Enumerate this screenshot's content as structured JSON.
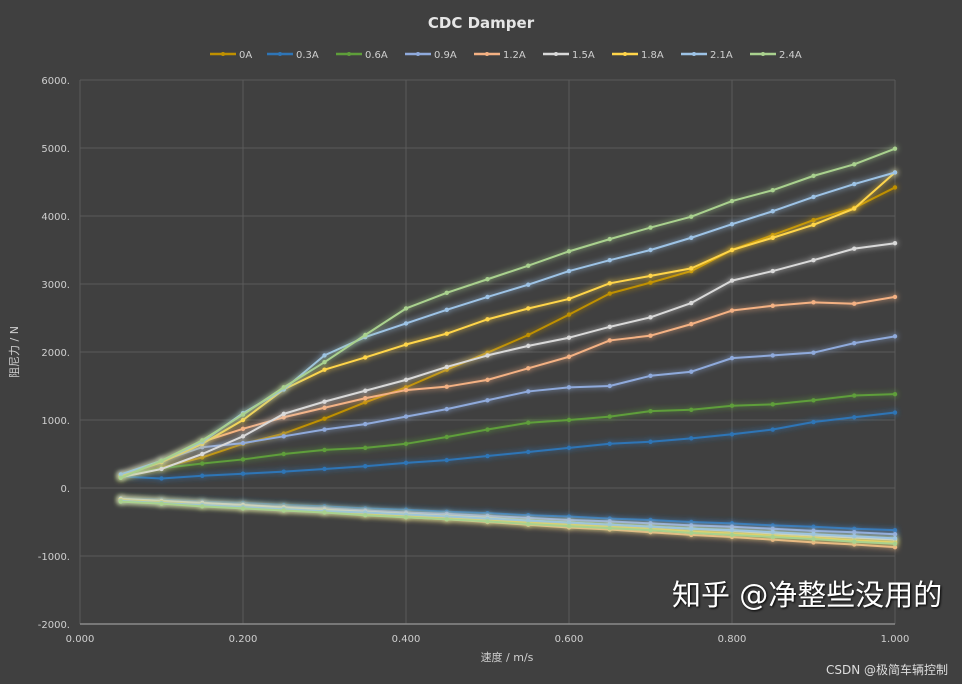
{
  "chart_data": {
    "type": "line",
    "title": "CDC Damper",
    "xlabel": "速度 / m/s",
    "ylabel": "阻尼力 / N",
    "xlim": [
      0,
      1.0
    ],
    "ylim": [
      -2000,
      6000
    ],
    "xticks": [
      "0.000",
      "0.200",
      "0.400",
      "0.600",
      "0.800",
      "1.000"
    ],
    "xtick_values": [
      0,
      0.2,
      0.4,
      0.6,
      0.8,
      1.0
    ],
    "yticks": [
      "-2000.",
      "-1000.",
      "0.",
      "1000.",
      "2000.",
      "3000.",
      "4000.",
      "5000.",
      "6000."
    ],
    "ytick_values": [
      -2000,
      -1000,
      0,
      1000,
      2000,
      3000,
      4000,
      5000,
      6000
    ],
    "grid": true,
    "legend_position": "top",
    "x": [
      0.05,
      0.1,
      0.15,
      0.2,
      0.25,
      0.3,
      0.35,
      0.4,
      0.45,
      0.5,
      0.55,
      0.6,
      0.65,
      0.7,
      0.75,
      0.8,
      0.85,
      0.9,
      0.95,
      1.0
    ],
    "series": [
      {
        "name": "0A",
        "color": "#bf9000",
        "compression": [
          150,
          300,
          450,
          650,
          800,
          1020,
          1260,
          1480,
          1740,
          1990,
          2250,
          2550,
          2860,
          3020,
          3190,
          3500,
          3720,
          3940,
          4120,
          4420
        ],
        "rebound": [
          -160,
          -190,
          -230,
          -260,
          -290,
          -320,
          -360,
          -390,
          -420,
          -450,
          -490,
          -520,
          -550,
          -580,
          -620,
          -650,
          -680,
          -710,
          -750,
          -780
        ]
      },
      {
        "name": "0.3A",
        "color": "#2e75b6",
        "compression": [
          170,
          140,
          180,
          210,
          240,
          280,
          320,
          370,
          410,
          470,
          530,
          590,
          650,
          680,
          730,
          790,
          860,
          970,
          1040,
          1110
        ],
        "rebound": [
          -150,
          -170,
          -200,
          -220,
          -250,
          -270,
          -300,
          -320,
          -350,
          -370,
          -400,
          -420,
          -450,
          -470,
          -500,
          -520,
          -550,
          -570,
          -600,
          -620
        ]
      },
      {
        "name": "0.6A",
        "color": "#5e9e3a",
        "compression": [
          180,
          290,
          360,
          420,
          500,
          560,
          590,
          650,
          750,
          860,
          960,
          1000,
          1050,
          1130,
          1150,
          1210,
          1230,
          1290,
          1360,
          1380
        ],
        "rebound": [
          -160,
          -190,
          -220,
          -250,
          -280,
          -310,
          -340,
          -370,
          -400,
          -430,
          -470,
          -500,
          -530,
          -560,
          -590,
          -620,
          -650,
          -680,
          -710,
          -740
        ]
      },
      {
        "name": "0.9A",
        "color": "#8faadc",
        "compression": [
          190,
          400,
          600,
          660,
          760,
          860,
          940,
          1050,
          1160,
          1290,
          1420,
          1480,
          1500,
          1650,
          1710,
          1910,
          1950,
          1990,
          2130,
          2230
        ],
        "rebound": [
          -170,
          -200,
          -220,
          -250,
          -280,
          -300,
          -330,
          -360,
          -380,
          -410,
          -440,
          -470,
          -490,
          -520,
          -550,
          -570,
          -600,
          -630,
          -650,
          -680
        ]
      },
      {
        "name": "1.2A",
        "color": "#f4b183",
        "compression": [
          190,
          400,
          680,
          870,
          1040,
          1180,
          1320,
          1440,
          1490,
          1590,
          1760,
          1930,
          2170,
          2240,
          2410,
          2610,
          2680,
          2730,
          2710,
          2810
        ],
        "rebound": [
          -170,
          -210,
          -240,
          -280,
          -320,
          -350,
          -390,
          -430,
          -460,
          -500,
          -540,
          -580,
          -610,
          -650,
          -690,
          -720,
          -760,
          -800,
          -830,
          -870
        ]
      },
      {
        "name": "1.5A",
        "color": "#d9d9d9",
        "compression": [
          160,
          280,
          500,
          760,
          1090,
          1270,
          1430,
          1590,
          1780,
          1950,
          2090,
          2210,
          2370,
          2510,
          2720,
          3050,
          3190,
          3350,
          3520,
          3600
        ],
        "rebound": [
          -160,
          -190,
          -220,
          -250,
          -290,
          -320,
          -350,
          -380,
          -410,
          -440,
          -480,
          -510,
          -540,
          -570,
          -600,
          -630,
          -670,
          -700,
          -730,
          -760
        ]
      },
      {
        "name": "1.8A",
        "color": "#ffd54a",
        "compression": [
          180,
          380,
          650,
          1000,
          1450,
          1740,
          1920,
          2110,
          2270,
          2480,
          2640,
          2780,
          3010,
          3120,
          3230,
          3500,
          3680,
          3870,
          4110,
          4640
        ],
        "rebound": [
          -180,
          -210,
          -250,
          -280,
          -310,
          -340,
          -380,
          -410,
          -440,
          -470,
          -510,
          -540,
          -570,
          -600,
          -640,
          -670,
          -700,
          -730,
          -770,
          -800
        ]
      },
      {
        "name": "2.1A",
        "color": "#9dc3e6",
        "compression": [
          200,
          400,
          680,
          1100,
          1450,
          1950,
          2220,
          2420,
          2620,
          2810,
          2990,
          3190,
          3350,
          3500,
          3680,
          3880,
          4070,
          4280,
          4470,
          4640
        ],
        "rebound": [
          -190,
          -220,
          -250,
          -280,
          -310,
          -340,
          -360,
          -390,
          -420,
          -450,
          -480,
          -510,
          -540,
          -570,
          -600,
          -620,
          -650,
          -680,
          -710,
          -740
        ]
      },
      {
        "name": "2.4A",
        "color": "#a9d18e",
        "compression": [
          150,
          400,
          700,
          1080,
          1480,
          1850,
          2250,
          2640,
          2870,
          3070,
          3270,
          3480,
          3660,
          3830,
          3990,
          4220,
          4380,
          4590,
          4760,
          4990
        ],
        "rebound": [
          -200,
          -230,
          -270,
          -300,
          -330,
          -360,
          -400,
          -430,
          -460,
          -490,
          -530,
          -560,
          -590,
          -620,
          -660,
          -690,
          -720,
          -750,
          -790,
          -820
        ]
      }
    ]
  },
  "watermark": {
    "zhihu": "知乎 @净整些没用的",
    "csdn": "CSDN @极简车辆控制"
  }
}
